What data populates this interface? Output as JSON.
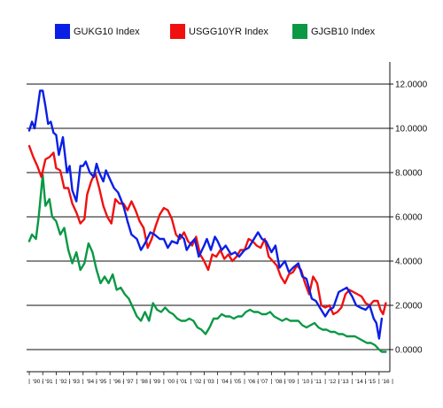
{
  "chart_data": {
    "type": "line",
    "title": "",
    "xlabel": "",
    "ylabel": "",
    "xlim": [
      1989.8,
      2016.8
    ],
    "ylim": [
      -1,
      13
    ],
    "y_ticks": [
      "12.0000",
      "10.0000",
      "8.0000",
      "6.0000",
      "4.0000",
      "2.0000",
      "0.0000"
    ],
    "y_tick_values": [
      12,
      10,
      8,
      6,
      4,
      2,
      0
    ],
    "x_ticks": [
      "'90 - '91",
      "'92 - '93",
      "'94 - '95",
      "'96 - '97",
      "'98 - '99",
      "'00 - '01",
      "'02 - '03",
      "'04 - '05",
      "'06 - '07",
      "'08 - '09",
      "'10 - '11",
      "'12 - '13",
      "'14 - '15",
      "'16"
    ],
    "grid": "horizontal",
    "legend_position": "top",
    "series": [
      {
        "name": "GUKG10 Index",
        "color": "#0a1fe6",
        "x": [
          1990.0,
          1990.2,
          1990.4,
          1990.6,
          1990.8,
          1991.0,
          1991.2,
          1991.4,
          1991.6,
          1991.8,
          1992.0,
          1992.2,
          1992.5,
          1992.8,
          1993.0,
          1993.2,
          1993.5,
          1993.8,
          1994.0,
          1994.2,
          1994.5,
          1994.8,
          1995.0,
          1995.2,
          1995.5,
          1995.7,
          1996.0,
          1996.3,
          1996.6,
          1997.0,
          1997.3,
          1997.6,
          1998.0,
          1998.3,
          1998.6,
          1999.0,
          1999.3,
          1999.7,
          2000.0,
          2000.3,
          2000.6,
          2001.0,
          2001.2,
          2001.5,
          2001.7,
          2002.0,
          2002.3,
          2002.6,
          2003.0,
          2003.2,
          2003.5,
          2003.8,
          2004.0,
          2004.3,
          2004.6,
          2005.0,
          2005.3,
          2005.6,
          2006.0,
          2006.3,
          2006.6,
          2007.0,
          2007.3,
          2007.6,
          2008.0,
          2008.3,
          2008.6,
          2009.0,
          2009.3,
          2009.6,
          2010.0,
          2010.3,
          2010.6,
          2011.0,
          2011.3,
          2011.6,
          2012.0,
          2012.3,
          2012.6,
          2013.0,
          2013.3,
          2013.6,
          2014.0,
          2014.3,
          2014.6,
          2015.0,
          2015.3,
          2015.6,
          2015.8,
          2016.0,
          2016.2
        ],
        "y": [
          9.9,
          10.3,
          10.0,
          10.8,
          11.7,
          11.7,
          11.0,
          10.2,
          10.3,
          9.8,
          9.7,
          8.8,
          9.6,
          8.0,
          8.3,
          7.2,
          6.7,
          8.3,
          8.3,
          8.5,
          8.0,
          7.8,
          8.4,
          8.0,
          7.6,
          8.1,
          7.7,
          7.3,
          7.1,
          6.5,
          5.8,
          5.2,
          5.0,
          4.5,
          4.8,
          5.3,
          5.2,
          5.0,
          5.0,
          4.6,
          4.9,
          4.8,
          5.2,
          5.0,
          4.5,
          4.8,
          5.0,
          4.2,
          4.7,
          5.0,
          4.5,
          5.1,
          4.9,
          4.5,
          4.7,
          4.3,
          4.4,
          4.2,
          4.5,
          4.6,
          4.9,
          5.3,
          5.0,
          4.9,
          4.4,
          4.7,
          3.7,
          4.0,
          3.5,
          3.7,
          3.9,
          3.3,
          3.2,
          2.3,
          2.2,
          1.9,
          1.5,
          1.8,
          1.9,
          2.6,
          2.7,
          2.8,
          2.4,
          2.0,
          1.9,
          1.8,
          2.0,
          1.4,
          1.2,
          0.5,
          1.4
        ]
      },
      {
        "name": "USGG10YR Index",
        "color": "#f01010",
        "x": [
          1990.0,
          1990.3,
          1990.6,
          1990.9,
          1991.2,
          1991.5,
          1991.8,
          1992.0,
          1992.3,
          1992.6,
          1992.9,
          1993.2,
          1993.5,
          1993.8,
          1994.1,
          1994.3,
          1994.6,
          1994.9,
          1995.2,
          1995.5,
          1995.8,
          1996.1,
          1996.4,
          1996.7,
          1997.0,
          1997.3,
          1997.6,
          1997.9,
          1998.2,
          1998.5,
          1998.8,
          1999.1,
          1999.4,
          1999.7,
          2000.0,
          2000.3,
          2000.6,
          2000.9,
          2001.2,
          2001.5,
          2001.8,
          2002.1,
          2002.4,
          2002.7,
          2003.0,
          2003.3,
          2003.6,
          2003.9,
          2004.2,
          2004.5,
          2004.8,
          2005.1,
          2005.4,
          2005.7,
          2006.0,
          2006.3,
          2006.6,
          2006.9,
          2007.2,
          2007.5,
          2007.8,
          2008.1,
          2008.4,
          2008.7,
          2009.0,
          2009.3,
          2009.6,
          2009.9,
          2010.2,
          2010.5,
          2010.8,
          2011.1,
          2011.4,
          2011.7,
          2012.0,
          2012.3,
          2012.6,
          2012.9,
          2013.2,
          2013.5,
          2013.8,
          2014.1,
          2014.4,
          2014.7,
          2015.0,
          2015.3,
          2015.6,
          2015.9,
          2016.1,
          2016.3,
          2016.5
        ],
        "y": [
          9.2,
          8.7,
          8.3,
          7.8,
          8.6,
          8.7,
          8.9,
          8.2,
          8.1,
          7.3,
          7.3,
          6.6,
          6.2,
          5.7,
          5.9,
          7.0,
          7.6,
          8.0,
          7.3,
          6.5,
          6.0,
          5.7,
          6.8,
          6.6,
          6.6,
          6.3,
          6.7,
          6.3,
          5.8,
          5.5,
          4.6,
          5.0,
          5.6,
          6.1,
          6.4,
          6.3,
          5.9,
          5.2,
          5.0,
          5.3,
          4.9,
          4.7,
          5.1,
          4.3,
          4.0,
          3.6,
          4.3,
          4.2,
          4.5,
          4.1,
          4.3,
          4.0,
          4.2,
          4.5,
          4.5,
          5.0,
          4.9,
          4.7,
          4.6,
          5.0,
          4.2,
          4.0,
          3.8,
          3.3,
          3.0,
          3.4,
          3.5,
          3.8,
          3.6,
          3.0,
          2.5,
          3.3,
          3.0,
          2.0,
          1.9,
          2.0,
          1.6,
          1.7,
          1.9,
          2.5,
          2.7,
          2.6,
          2.5,
          2.4,
          2.1,
          2.0,
          2.2,
          2.2,
          1.8,
          1.6,
          2.1
        ]
      },
      {
        "name": "GJGB10 Index",
        "color": "#0a9845",
        "x": [
          1990.0,
          1990.2,
          1990.5,
          1990.7,
          1991.0,
          1991.2,
          1991.5,
          1991.7,
          1992.0,
          1992.3,
          1992.6,
          1992.9,
          1993.2,
          1993.5,
          1993.8,
          1994.1,
          1994.4,
          1994.7,
          1995.0,
          1995.3,
          1995.6,
          1995.9,
          1996.2,
          1996.5,
          1996.8,
          1997.1,
          1997.4,
          1997.7,
          1998.0,
          1998.3,
          1998.6,
          1998.9,
          1999.2,
          1999.5,
          1999.8,
          2000.1,
          2000.4,
          2000.7,
          2001.0,
          2001.3,
          2001.6,
          2001.9,
          2002.2,
          2002.5,
          2002.8,
          2003.1,
          2003.4,
          2003.7,
          2004.0,
          2004.3,
          2004.6,
          2004.9,
          2005.2,
          2005.5,
          2005.8,
          2006.1,
          2006.4,
          2006.7,
          2007.0,
          2007.3,
          2007.6,
          2007.9,
          2008.2,
          2008.5,
          2008.8,
          2009.1,
          2009.4,
          2009.7,
          2010.0,
          2010.3,
          2010.6,
          2010.9,
          2011.2,
          2011.5,
          2011.8,
          2012.1,
          2012.4,
          2012.7,
          2013.0,
          2013.3,
          2013.6,
          2013.9,
          2014.2,
          2014.5,
          2014.8,
          2015.1,
          2015.4,
          2015.7,
          2016.0,
          2016.2,
          2016.5
        ],
        "y": [
          4.9,
          5.2,
          5.0,
          6.0,
          7.9,
          6.5,
          6.8,
          6.0,
          5.8,
          5.2,
          5.5,
          4.5,
          3.9,
          4.4,
          3.6,
          3.9,
          4.8,
          4.4,
          3.6,
          3.0,
          3.3,
          3.0,
          3.4,
          2.7,
          2.8,
          2.5,
          2.3,
          1.9,
          1.5,
          1.3,
          1.7,
          1.3,
          2.1,
          1.8,
          1.7,
          1.9,
          1.7,
          1.6,
          1.4,
          1.3,
          1.3,
          1.4,
          1.3,
          1.0,
          0.9,
          0.7,
          1.0,
          1.4,
          1.4,
          1.6,
          1.5,
          1.5,
          1.4,
          1.5,
          1.5,
          1.7,
          1.8,
          1.7,
          1.7,
          1.6,
          1.6,
          1.7,
          1.5,
          1.4,
          1.3,
          1.4,
          1.3,
          1.3,
          1.3,
          1.1,
          1.0,
          1.1,
          1.2,
          1.0,
          0.9,
          0.9,
          0.8,
          0.8,
          0.7,
          0.7,
          0.6,
          0.6,
          0.6,
          0.5,
          0.4,
          0.3,
          0.3,
          0.2,
          0.0,
          -0.1,
          -0.1
        ]
      }
    ]
  }
}
